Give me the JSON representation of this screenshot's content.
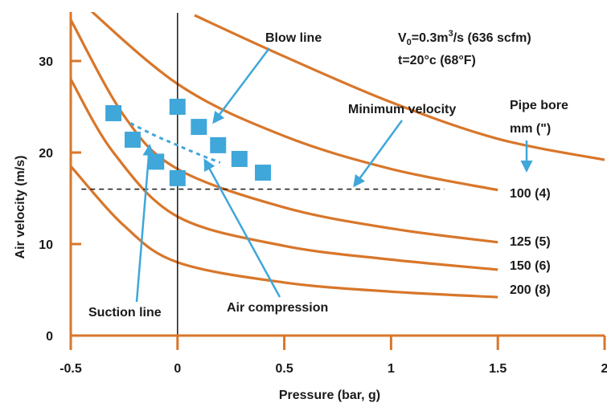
{
  "chart_data": {
    "type": "line",
    "title": "",
    "xlabel": "Pressure (bar, g)",
    "ylabel": "Air velocity (m/s)",
    "xlim": [
      -0.5,
      2
    ],
    "ylim": [
      0,
      35
    ],
    "x_ticks": [
      "-0.5",
      "0",
      "0.5",
      "1",
      "1.5",
      "2"
    ],
    "y_ticks": [
      "0",
      "10",
      "20",
      "30"
    ],
    "grid": false,
    "conditions": {
      "flow_prefix": "V",
      "flow_sub": "0",
      "flow_value": "=0.3m",
      "flow_exp": "3",
      "flow_rest": "/s (636 scfm)",
      "temperature": "t=20°c (68°F)"
    },
    "curves_legend_title": [
      "Pipe bore",
      "mm (\")"
    ],
    "series": [
      {
        "name": "100 (4)",
        "points": [
          [
            -0.5,
            37.5
          ],
          [
            0,
            27.5
          ],
          [
            0.5,
            21.8
          ],
          [
            1,
            18.2
          ],
          [
            1.5,
            15.9
          ]
        ]
      },
      {
        "name": "125 (5)",
        "points": [
          [
            -0.5,
            34.5
          ],
          [
            -0.25,
            24.0
          ],
          [
            0,
            18.2
          ],
          [
            0.5,
            14.0
          ],
          [
            1,
            11.7
          ],
          [
            1.5,
            10.2
          ]
        ]
      },
      {
        "name": "150 (6)",
        "points": [
          [
            -0.5,
            28.0
          ],
          [
            -0.3,
            20.0
          ],
          [
            0,
            13.0
          ],
          [
            0.5,
            9.8
          ],
          [
            1,
            8.3
          ],
          [
            1.5,
            7.2
          ]
        ]
      },
      {
        "name": "200 (8)",
        "points": [
          [
            -0.5,
            18.5
          ],
          [
            -0.25,
            12.0
          ],
          [
            0,
            8.0
          ],
          [
            0.5,
            5.8
          ],
          [
            1,
            4.8
          ],
          [
            1.5,
            4.2
          ]
        ]
      },
      {
        "name": "",
        "points": [
          [
            0.08,
            35
          ],
          [
            0.5,
            30.5
          ],
          [
            1,
            25.5
          ],
          [
            1.5,
            21.5
          ],
          [
            2,
            19.2
          ]
        ]
      }
    ],
    "suction_line": [
      [
        -0.3,
        24.3
      ],
      [
        -0.21,
        21.4
      ],
      [
        -0.1,
        19.0
      ],
      [
        0,
        17.2
      ]
    ],
    "blow_line": [
      [
        0,
        25.0
      ],
      [
        0.1,
        22.8
      ],
      [
        0.19,
        20.8
      ],
      [
        0.29,
        19.3
      ],
      [
        0.4,
        17.8
      ]
    ],
    "air_compression": [
      [
        -0.22,
        23.2
      ],
      [
        -0.1,
        21.8
      ],
      [
        0,
        20.8
      ],
      [
        0.1,
        19.8
      ],
      [
        0.2,
        18.9
      ]
    ],
    "minimum_velocity": 16,
    "minimum_velocity_x_range": [
      -0.45,
      1.25
    ],
    "annotations": {
      "blow_line": "Blow line",
      "minimum_velocity": "Minimum velocity",
      "suction_line": "Suction line",
      "air_compression": "Air compression"
    },
    "colors": {
      "curve": "#d8762a",
      "marker": "#3fa7da",
      "axis": "#d8762a",
      "text": "#1a1a1a"
    }
  }
}
